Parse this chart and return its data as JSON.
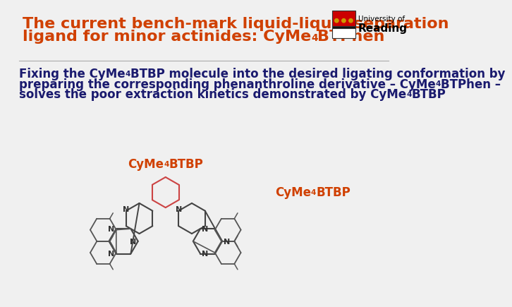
{
  "title_line1": "The current bench-mark liquid-liquid separation",
  "title_line2_normal": "ligand for minor actinides: CyMe",
  "title_line2_sub": "4",
  "title_line2_end": "BTPhen",
  "title_color": "#D04000",
  "body_text_color": "#1a1a6e",
  "body_line1_parts": [
    {
      "text": "Fixing the CyMe",
      "sub": false
    },
    {
      "text": "4",
      "sub": true
    },
    {
      "text": "BTBP molecule into the desired ligating conformation by",
      "sub": false
    }
  ],
  "body_line2_parts": [
    {
      "text": "preparing the corresponding phenanthroline derivative – CyMe",
      "sub": false
    },
    {
      "text": "4",
      "sub": true
    },
    {
      "text": "BTPhen –",
      "sub": false
    }
  ],
  "body_line3_parts": [
    {
      "text": "solves the poor extraction kinetics demonstrated by CyMe",
      "sub": false
    },
    {
      "text": "4",
      "sub": true
    },
    {
      "text": "BTBP",
      "sub": false
    }
  ],
  "label1_normal": "CyMe",
  "label1_sub": "4",
  "label1_end": "BTBP",
  "label2_normal": "CyMe",
  "label2_sub": "4",
  "label2_end": "BTBP",
  "label_color": "#D04000",
  "background_color": "#f0f0f0",
  "logo_text1": "University of",
  "logo_text2": "Reading",
  "font_size_title": 16,
  "font_size_body": 12,
  "font_size_label": 12
}
